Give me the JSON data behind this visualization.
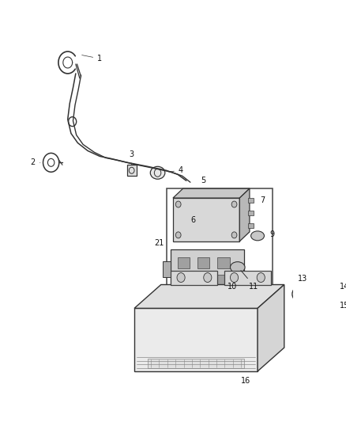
{
  "background_color": "#ffffff",
  "fig_width": 4.38,
  "fig_height": 5.33,
  "dpi": 100,
  "line_color": "#333333",
  "label_fontsize": 7.0
}
